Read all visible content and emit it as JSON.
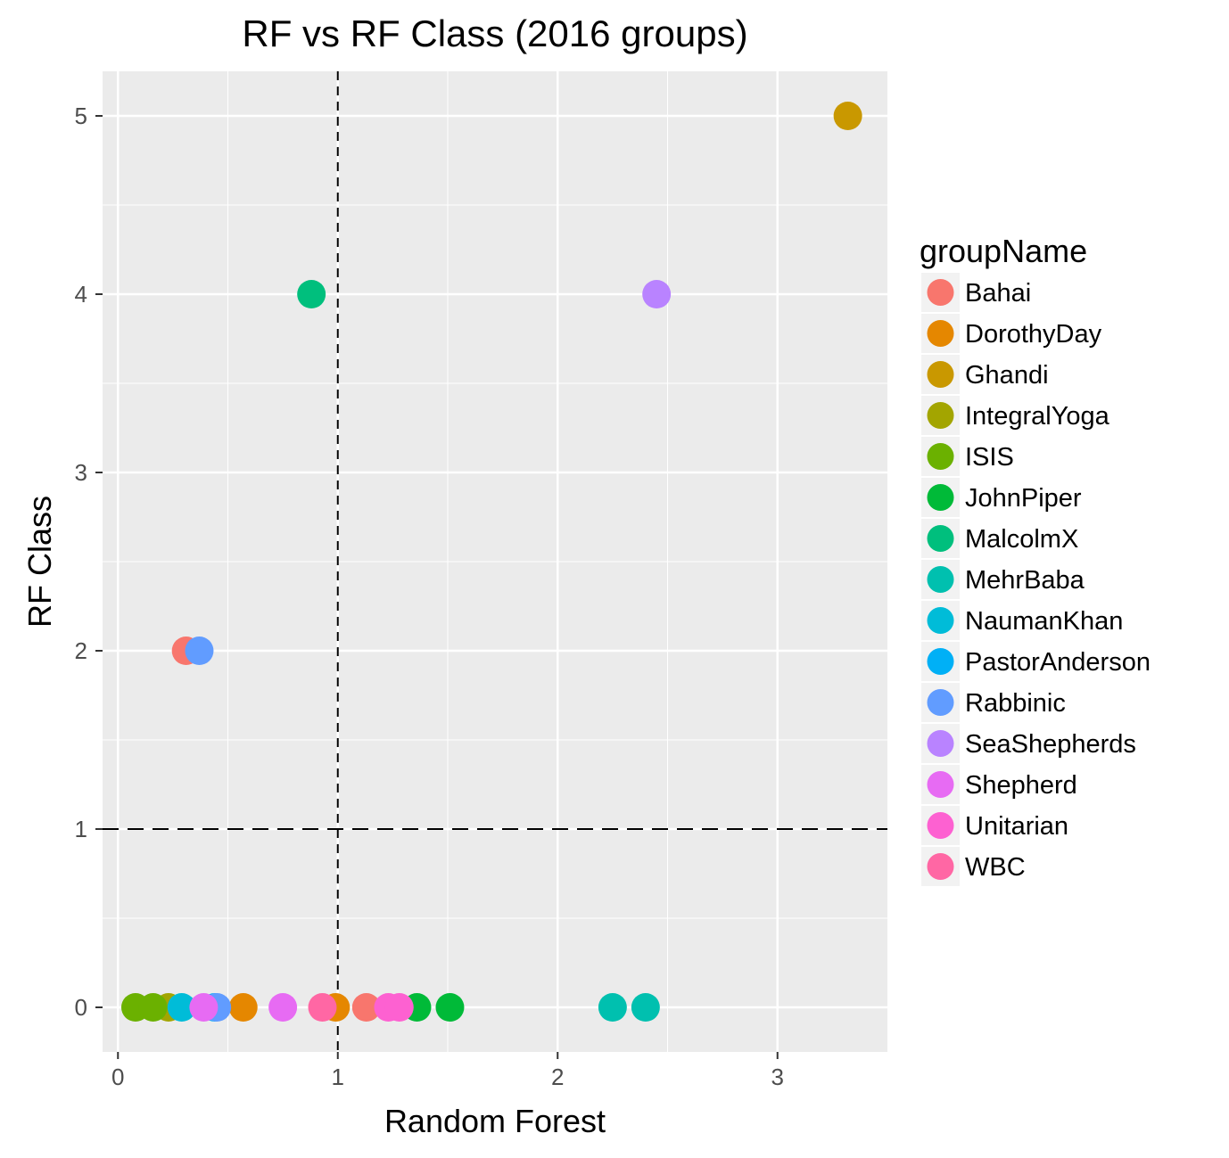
{
  "chart_data": {
    "type": "scatter",
    "title": "RF vs RF Class (2016 groups)",
    "xlabel": "Random Forest",
    "ylabel": "RF Class",
    "xlim": [
      -0.07,
      3.5
    ],
    "ylim": [
      -0.25,
      5.25
    ],
    "x_ticks": [
      {
        "value": 0,
        "label": "0"
      },
      {
        "value": 1,
        "label": "1"
      },
      {
        "value": 2,
        "label": "2"
      },
      {
        "value": 3,
        "label": "3"
      }
    ],
    "y_ticks": [
      {
        "value": 0,
        "label": "0"
      },
      {
        "value": 1,
        "label": "1"
      },
      {
        "value": 2,
        "label": "2"
      },
      {
        "value": 3,
        "label": "3"
      },
      {
        "value": 4,
        "label": "4"
      },
      {
        "value": 5,
        "label": "5"
      }
    ],
    "grid": true,
    "reference_lines": {
      "vertical_x": 1,
      "horizontal_y": 1,
      "style": "dashed"
    },
    "legend": {
      "title": "groupName",
      "position": "right"
    },
    "series": [
      {
        "name": "Bahai",
        "color": "#F8766D",
        "points": [
          {
            "x": 0.31,
            "y": 2
          },
          {
            "x": 1.13,
            "y": 0
          }
        ]
      },
      {
        "name": "DorothyDay",
        "color": "#E58700",
        "points": [
          {
            "x": 0.57,
            "y": 0
          },
          {
            "x": 0.99,
            "y": 0
          }
        ]
      },
      {
        "name": "Ghandi",
        "color": "#C99800",
        "points": [
          {
            "x": 3.32,
            "y": 5
          }
        ]
      },
      {
        "name": "IntegralYoga",
        "color": "#A3A500",
        "points": [
          {
            "x": 0.23,
            "y": 0
          }
        ]
      },
      {
        "name": "ISIS",
        "color": "#6BB100",
        "points": [
          {
            "x": 0.08,
            "y": 0
          },
          {
            "x": 0.16,
            "y": 0
          }
        ]
      },
      {
        "name": "JohnPiper",
        "color": "#00BA38",
        "points": [
          {
            "x": 1.36,
            "y": 0
          },
          {
            "x": 1.51,
            "y": 0
          }
        ]
      },
      {
        "name": "MalcolmX",
        "color": "#00BF7D",
        "points": [
          {
            "x": 0.88,
            "y": 4
          }
        ]
      },
      {
        "name": "MehrBaba",
        "color": "#00C0AF",
        "points": [
          {
            "x": 2.25,
            "y": 0
          },
          {
            "x": 2.4,
            "y": 0
          }
        ]
      },
      {
        "name": "NaumanKhan",
        "color": "#00BCD8",
        "points": [
          {
            "x": 0.29,
            "y": 0
          }
        ]
      },
      {
        "name": "PastorAnderson",
        "color": "#00B0F6",
        "points": [
          {
            "x": 0.44,
            "y": 0
          }
        ]
      },
      {
        "name": "Rabbinic",
        "color": "#619CFF",
        "points": [
          {
            "x": 0.37,
            "y": 2
          },
          {
            "x": 0.45,
            "y": 0
          }
        ]
      },
      {
        "name": "SeaShepherds",
        "color": "#B983FF",
        "points": [
          {
            "x": 2.45,
            "y": 4
          }
        ]
      },
      {
        "name": "Shepherd",
        "color": "#E76BF3",
        "points": [
          {
            "x": 0.39,
            "y": 0
          },
          {
            "x": 0.75,
            "y": 0
          }
        ]
      },
      {
        "name": "Unitarian",
        "color": "#FD61D1",
        "points": [
          {
            "x": 1.23,
            "y": 0
          },
          {
            "x": 1.28,
            "y": 0
          }
        ]
      },
      {
        "name": "WBC",
        "color": "#FF67A4",
        "points": [
          {
            "x": 0.93,
            "y": 0
          }
        ]
      }
    ]
  }
}
